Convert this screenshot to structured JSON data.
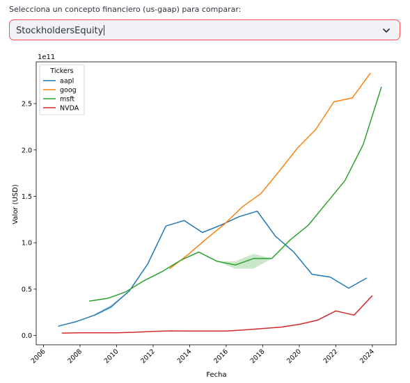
{
  "select": {
    "label": "Selecciona un concepto financiero (us-gaap) para comparar:",
    "value": "StockholdersEquity",
    "icon": "chevron-down-icon"
  },
  "chart_data": {
    "type": "line",
    "title": "",
    "xlabel": "Fecha",
    "ylabel": "Valor (USD)",
    "y_offset_label": "1e11",
    "xlim": [
      2005.6,
      2025.3
    ],
    "ylim": [
      -0.1,
      2.95
    ],
    "x_ticks": [
      2006,
      2008,
      2010,
      2012,
      2014,
      2016,
      2018,
      2020,
      2022,
      2024
    ],
    "y_ticks": [
      0.0,
      0.5,
      1.0,
      1.5,
      2.0,
      2.5
    ],
    "y_tick_labels": [
      "0.0",
      "0.5",
      "1.0",
      "1.5",
      "2.0",
      "2.5"
    ],
    "grid": false,
    "legend": {
      "title": "Tickers",
      "placement": "top-left"
    },
    "series": [
      {
        "name": "aapl",
        "color": "#1f77b4",
        "x": [
          2006.8,
          2007.8,
          2008.8,
          2009.7,
          2010.7,
          2011.7,
          2012.7,
          2013.7,
          2014.7,
          2015.7,
          2016.7,
          2017.7,
          2018.7,
          2019.7,
          2020.7,
          2021.7,
          2022.7,
          2023.7
        ],
        "y": [
          0.1,
          0.15,
          0.22,
          0.31,
          0.48,
          0.77,
          1.18,
          1.24,
          1.11,
          1.19,
          1.28,
          1.34,
          1.07,
          0.9,
          0.66,
          0.63,
          0.51,
          0.62
        ]
      },
      {
        "name": "goog",
        "color": "#ff7f0e",
        "x": [
          2012.9,
          2013.9,
          2014.9,
          2015.9,
          2016.9,
          2017.9,
          2018.9,
          2019.9,
          2020.9,
          2021.9,
          2022.9,
          2023.9
        ],
        "y": [
          0.72,
          0.87,
          1.04,
          1.2,
          1.39,
          1.53,
          1.77,
          2.02,
          2.22,
          2.52,
          2.56,
          2.83
        ]
      },
      {
        "name": "msft",
        "color": "#2ca02c",
        "x": [
          2008.5,
          2009.5,
          2010.5,
          2011.5,
          2012.5,
          2013.5,
          2014.5,
          2015.5,
          2016.5,
          2017.5,
          2018.5,
          2019.5,
          2020.5,
          2021.5,
          2022.5,
          2023.5,
          2024.5
        ],
        "y": [
          0.37,
          0.4,
          0.47,
          0.59,
          0.69,
          0.81,
          0.9,
          0.8,
          0.76,
          0.83,
          0.83,
          1.03,
          1.19,
          1.43,
          1.67,
          2.06,
          2.68
        ]
      },
      {
        "name": "NVDA",
        "color": "#d62728",
        "x": [
          2007.0,
          2008.0,
          2009.0,
          2010.0,
          2011.0,
          2012.0,
          2013.0,
          2014.0,
          2015.0,
          2016.0,
          2017.0,
          2018.0,
          2019.0,
          2020.0,
          2021.0,
          2022.0,
          2023.0,
          2024.0
        ],
        "y": [
          0.025,
          0.03,
          0.03,
          0.03,
          0.035,
          0.045,
          0.05,
          0.048,
          0.048,
          0.048,
          0.06,
          0.075,
          0.09,
          0.12,
          0.165,
          0.265,
          0.22,
          0.43
        ]
      }
    ],
    "bands": [
      {
        "series": "msft",
        "color": "#2ca02c",
        "x": [
          2015.5,
          2016.5,
          2017.5,
          2018.5
        ],
        "low": [
          0.8,
          0.72,
          0.72,
          0.83
        ],
        "high": [
          0.8,
          0.8,
          0.88,
          0.83
        ]
      },
      {
        "series": "aapl",
        "color": "#1f77b4",
        "x": [
          2008.8,
          2009.7,
          2010.7
        ],
        "low": [
          0.21,
          0.29,
          0.48
        ],
        "high": [
          0.23,
          0.33,
          0.48
        ]
      }
    ]
  }
}
